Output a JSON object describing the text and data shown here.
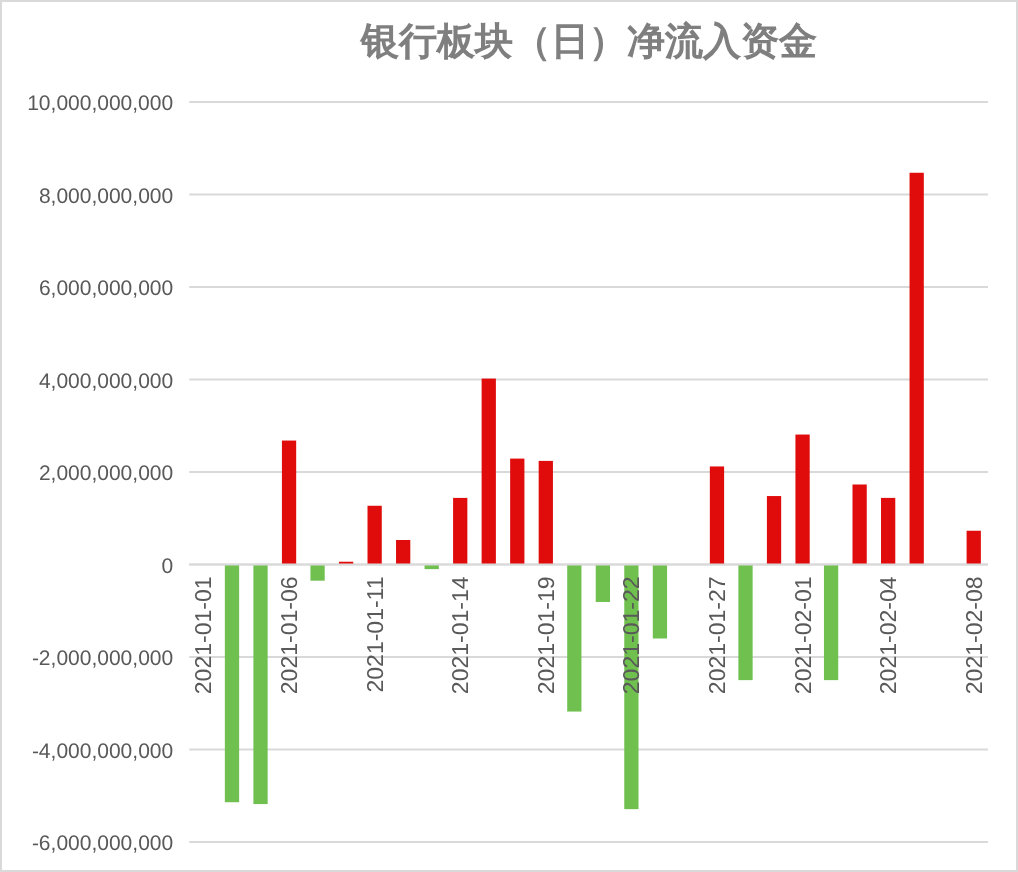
{
  "chart_data": {
    "type": "bar",
    "title": "银行板块（日）净流入资金",
    "categories": [
      "2021-01-01",
      null,
      null,
      "2021-01-06",
      null,
      null,
      "2021-01-11",
      null,
      null,
      "2021-01-14",
      null,
      null,
      "2021-01-19",
      null,
      null,
      "2021-01-22",
      null,
      null,
      "2021-01-27",
      null,
      null,
      "2021-02-01",
      null,
      null,
      "2021-02-04",
      null,
      null,
      "2021-02-08"
    ],
    "values": [
      null,
      -5140000000,
      -5180000000,
      2680000000,
      -350000000,
      60000000,
      1270000000,
      530000000,
      -100000000,
      1440000000,
      4020000000,
      2290000000,
      2240000000,
      -3180000000,
      -810000000,
      -5290000000,
      -1600000000,
      null,
      2120000000,
      -2500000000,
      1480000000,
      2810000000,
      -2500000000,
      1730000000,
      1440000000,
      8470000000,
      null,
      730000000
    ],
    "colors": [
      null,
      "#70c050",
      "#70c050",
      "#e00c0c",
      "#70c050",
      "#e00c0c",
      "#e00c0c",
      "#e00c0c",
      "#70c050",
      "#e00c0c",
      "#e00c0c",
      "#e00c0c",
      "#e00c0c",
      "#70c050",
      "#70c050",
      "#70c050",
      "#70c050",
      null,
      "#e00c0c",
      "#70c050",
      "#e00c0c",
      "#e00c0c",
      "#70c050",
      "#e00c0c",
      "#e00c0c",
      "#e00c0c",
      null,
      "#e00c0c"
    ],
    "ylim": [
      -6000000000,
      10000000000
    ],
    "yticks": [
      {
        "value": -6000000000,
        "label": "-6,000,000,000"
      },
      {
        "value": -4000000000,
        "label": "-4,000,000,000"
      },
      {
        "value": -2000000000,
        "label": "-2,000,000,000"
      },
      {
        "value": 0,
        "label": "0"
      },
      {
        "value": 2000000000,
        "label": "2,000,000,000"
      },
      {
        "value": 4000000000,
        "label": "4,000,000,000"
      },
      {
        "value": 6000000000,
        "label": "6,000,000,000"
      },
      {
        "value": 8000000000,
        "label": "8,000,000,000"
      },
      {
        "value": 10000000000,
        "label": "10,000,000,000"
      }
    ],
    "grid": "y"
  }
}
